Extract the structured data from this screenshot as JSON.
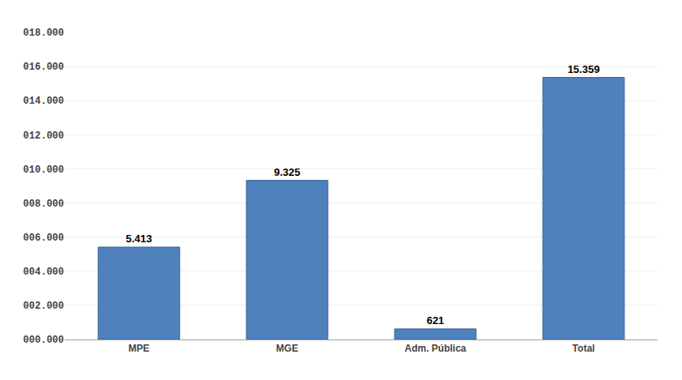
{
  "chart_data": {
    "type": "bar",
    "categories": [
      "MPE",
      "MGE",
      "Adm. Pública",
      "Total"
    ],
    "values": [
      5413,
      9325,
      621,
      15359
    ],
    "value_labels": [
      "5.413",
      "9.325",
      "621",
      "15.359"
    ],
    "data_labels": true,
    "color": "#4F81BD",
    "ylim": [
      0,
      18000
    ],
    "yticks": [
      {
        "value": 0,
        "label": "000.000"
      },
      {
        "value": 2000,
        "label": "002.000"
      },
      {
        "value": 4000,
        "label": "004.000"
      },
      {
        "value": 6000,
        "label": "006.000"
      },
      {
        "value": 8000,
        "label": "008.000"
      },
      {
        "value": 10000,
        "label": "010.000"
      },
      {
        "value": 12000,
        "label": "012.000"
      },
      {
        "value": 14000,
        "label": "014.000"
      },
      {
        "value": 16000,
        "label": "016.000"
      },
      {
        "value": 18000,
        "label": "018.000"
      }
    ],
    "grid": true
  }
}
